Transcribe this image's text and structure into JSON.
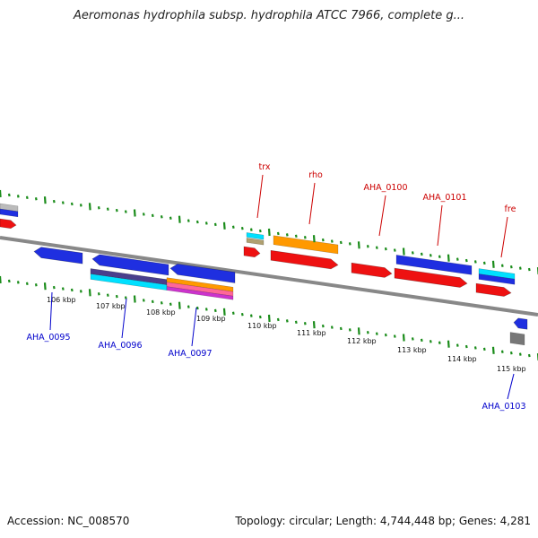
{
  "title": "Aeromonas hydrophila subsp. hydrophila ATCC 7966, complete g...",
  "footer": {
    "accession": "Accession: NC_008570",
    "summary": "Topology: circular; Length: 4,744,448 bp; Genes: 4,281"
  },
  "colors": {
    "backbone": "#888888",
    "tick": "#1a8c1a",
    "forward_label": "#cc0000",
    "reverse_label": "#0000cc",
    "blue": "#1f2fe0",
    "red": "#ee1111",
    "orange": "#ff9900",
    "cyan": "#00e0ff",
    "gray": "#999999"
  },
  "ticks": [
    "106 kbp",
    "107 kbp",
    "108 kbp",
    "109 kbp",
    "110 kbp",
    "111 kbp",
    "112 kbp",
    "113 kbp",
    "114 kbp",
    "115 kbp"
  ],
  "gene_labels": [
    {
      "text": "trx",
      "strand": "forward"
    },
    {
      "text": "rho",
      "strand": "forward"
    },
    {
      "text": "AHA_0100",
      "strand": "forward"
    },
    {
      "text": "AHA_0101",
      "strand": "forward"
    },
    {
      "text": "fre",
      "strand": "forward"
    },
    {
      "text": "AHA_0095",
      "strand": "reverse"
    },
    {
      "text": "AHA_0096",
      "strand": "reverse"
    },
    {
      "text": "AHA_0097",
      "strand": "reverse"
    },
    {
      "text": "AHA_0103",
      "strand": "reverse"
    }
  ]
}
